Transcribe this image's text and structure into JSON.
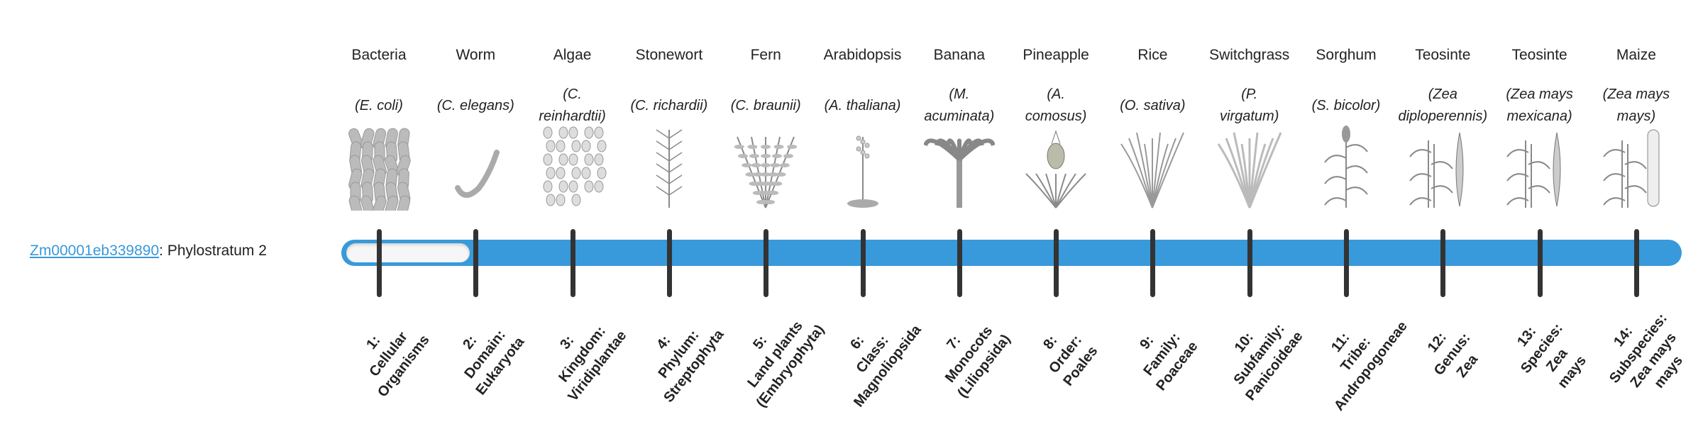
{
  "gene": {
    "id": "Zm00001eb339890",
    "suffix": ": Phylostratum 2",
    "phylostratum": 2
  },
  "colors": {
    "accent": "#3899db",
    "tick": "#333333",
    "track": "#f6f6f6"
  },
  "columns": [
    {
      "common": "Bacteria",
      "sci": [
        "(E. coli)"
      ],
      "icon": "bacteria-icon",
      "rank": [
        "1:",
        "Cellular",
        "Organisms"
      ]
    },
    {
      "common": "Worm",
      "sci": [
        "(C. elegans)"
      ],
      "icon": "worm-icon",
      "rank": [
        "2:",
        "Domain:",
        "Eukaryota"
      ]
    },
    {
      "common": "Algae",
      "sci": [
        "(C.",
        "reinhardtii)"
      ],
      "icon": "algae-icon",
      "rank": [
        "3:",
        "Kingdom:",
        "Viridiplantae"
      ]
    },
    {
      "common": "Stonewort",
      "sci": [
        "(C. richardii)"
      ],
      "icon": "stonewort-icon",
      "rank": [
        "4:",
        "Phylum:",
        "Streptophyta"
      ]
    },
    {
      "common": "Fern",
      "sci": [
        "(C. braunii)"
      ],
      "icon": "fern-icon",
      "rank": [
        "5:",
        "Land plants",
        "(Embryophyta)"
      ]
    },
    {
      "common": "Arabidopsis",
      "sci": [
        "(A. thaliana)"
      ],
      "icon": "arabidopsis-icon",
      "rank": [
        "6:",
        "Class:",
        "Magnoliopsida"
      ]
    },
    {
      "common": "Banana",
      "sci": [
        "(M.",
        "acuminata)"
      ],
      "icon": "banana-icon",
      "rank": [
        "7:",
        "Monocots",
        "(Liliopsida)"
      ]
    },
    {
      "common": "Pineapple",
      "sci": [
        "(A.",
        "comosus)"
      ],
      "icon": "pineapple-icon",
      "rank": [
        "8:",
        "Order:",
        "Poales"
      ]
    },
    {
      "common": "Rice",
      "sci": [
        "(O. sativa)"
      ],
      "icon": "rice-icon",
      "rank": [
        "9:",
        "Family:",
        "Poaceae"
      ]
    },
    {
      "common": "Switchgrass",
      "sci": [
        "(P.",
        "virgatum)"
      ],
      "icon": "switchgrass-icon",
      "rank": [
        "10:",
        "Subfamily:",
        "Panicoideae"
      ]
    },
    {
      "common": "Sorghum",
      "sci": [
        "(S. bicolor)"
      ],
      "icon": "sorghum-icon",
      "rank": [
        "11:",
        "Tribe:",
        "Andropogoneae"
      ]
    },
    {
      "common": "Teosinte",
      "sci": [
        "(Zea",
        "diploperennis)"
      ],
      "icon": "teosinte-icon",
      "rank": [
        "12:",
        "Genus:",
        "Zea"
      ]
    },
    {
      "common": "Teosinte",
      "sci": [
        "(Zea mays",
        "mexicana)"
      ],
      "icon": "teosinte-mexicana-icon",
      "rank": [
        "13:",
        "Species:",
        "Zea",
        "mays"
      ]
    },
    {
      "common": "Maize",
      "sci": [
        "(Zea mays",
        "mays)"
      ],
      "icon": "maize-icon",
      "rank": [
        "14:",
        "Subspecies:",
        "Zea mays",
        "mays"
      ]
    }
  ]
}
